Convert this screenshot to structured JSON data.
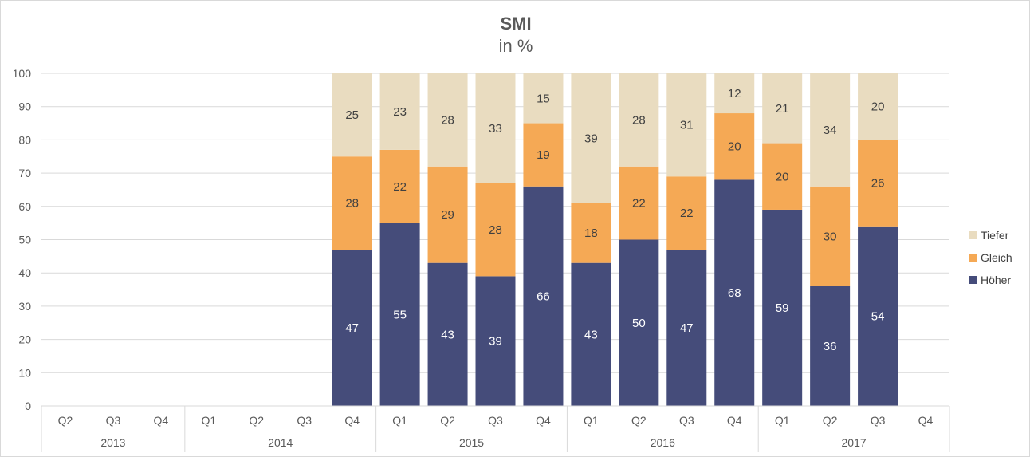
{
  "chart_data": {
    "type": "bar",
    "stacked": true,
    "title": "SMI",
    "subtitle": "in %",
    "ylim": [
      0,
      100
    ],
    "yticks": [
      0,
      10,
      20,
      30,
      40,
      50,
      60,
      70,
      80,
      90,
      100
    ],
    "grid": true,
    "legend_position": "right",
    "categories": [
      "Q2",
      "Q3",
      "Q4",
      "Q1",
      "Q2",
      "Q3",
      "Q4",
      "Q1",
      "Q2",
      "Q3",
      "Q4",
      "Q1",
      "Q2",
      "Q3",
      "Q4",
      "Q1",
      "Q2",
      "Q3",
      "Q4"
    ],
    "year_groups": [
      {
        "label": "2013",
        "count": 3
      },
      {
        "label": "2014",
        "count": 4
      },
      {
        "label": "2015",
        "count": 4
      },
      {
        "label": "2016",
        "count": 4
      },
      {
        "label": "2017",
        "count": 4
      }
    ],
    "series": [
      {
        "name": "Höher",
        "color": "#454c7a",
        "label_color": "#ffffff",
        "values": [
          null,
          null,
          null,
          null,
          null,
          null,
          47,
          55,
          43,
          39,
          66,
          43,
          50,
          47,
          68,
          59,
          36,
          54,
          null
        ]
      },
      {
        "name": "Gleich",
        "color": "#f5a955",
        "label_color": "#404040",
        "values": [
          null,
          null,
          null,
          null,
          null,
          null,
          28,
          22,
          29,
          28,
          19,
          18,
          22,
          22,
          20,
          20,
          30,
          26,
          null
        ]
      },
      {
        "name": "Tiefer",
        "color": "#e9dcc0",
        "label_color": "#404040",
        "values": [
          null,
          null,
          null,
          null,
          null,
          null,
          25,
          23,
          28,
          33,
          15,
          39,
          28,
          31,
          12,
          21,
          34,
          20,
          null
        ]
      }
    ],
    "legend_order": [
      "Tiefer",
      "Gleich",
      "Höher"
    ]
  }
}
